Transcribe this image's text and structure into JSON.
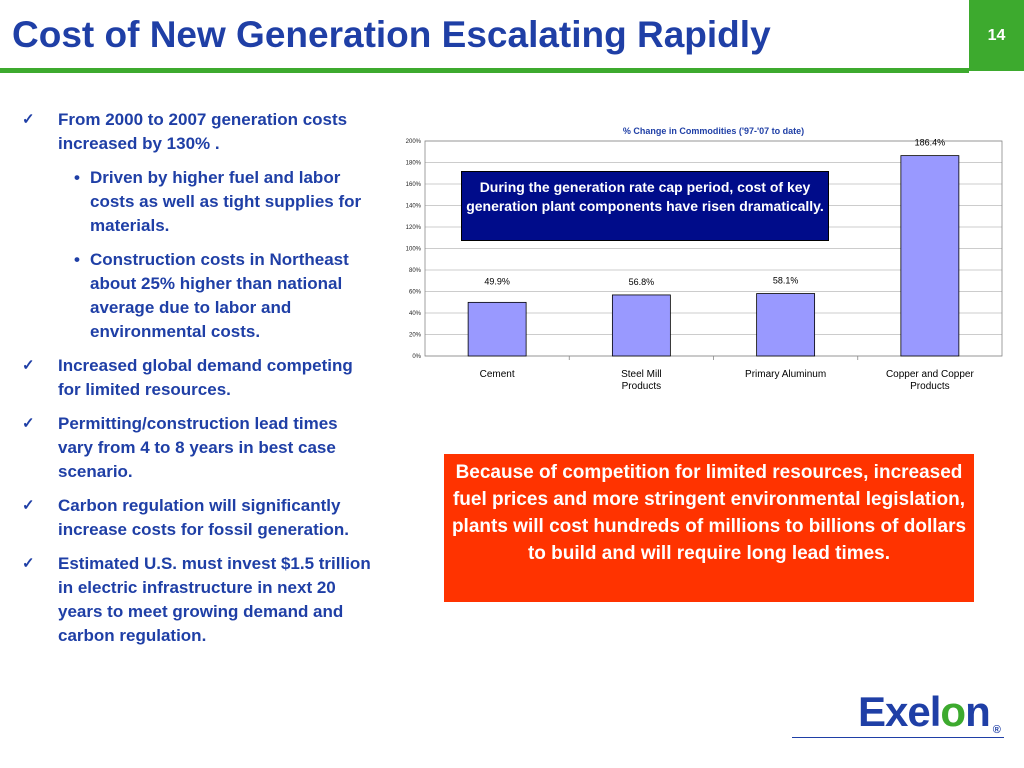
{
  "slide": {
    "title": "Cost of New Generation Escalating Rapidly",
    "number": "14"
  },
  "bullets": [
    {
      "level": 1,
      "text": "From 2000 to 2007 generation costs increased by 130% ."
    },
    {
      "level": 2,
      "text": "Driven by higher fuel and labor costs as well as tight supplies for materials."
    },
    {
      "level": 2,
      "text": "Construction costs in Northeast about 25% higher than national average due to labor and environmental costs."
    },
    {
      "level": 1,
      "text": "Increased global demand competing for limited resources."
    },
    {
      "level": 1,
      "text": "Permitting/construction lead times vary from 4 to 8 years in best case scenario."
    },
    {
      "level": 1,
      "text": "Carbon regulation will significantly increase costs for fossil generation."
    },
    {
      "level": 1,
      "text": "Estimated U.S. must invest $1.5 trillion in electric infrastructure in next 20 years to meet growing demand and carbon regulation."
    }
  ],
  "chart_data": {
    "type": "bar",
    "title": "% Change in Commodities ('97-'07 to date)",
    "categories": [
      "Cement",
      "Steel Mill Products",
      "Primary Aluminum",
      "Copper and Copper Products"
    ],
    "values": [
      49.9,
      56.8,
      58.1,
      186.4
    ],
    "data_labels": [
      "49.9%",
      "56.8%",
      "58.1%",
      "186.4%"
    ],
    "ylim": [
      0,
      200
    ],
    "yticks": [
      "0%",
      "20%",
      "40%",
      "60%",
      "80%",
      "100%",
      "120%",
      "140%",
      "160%",
      "180%",
      "200%"
    ],
    "bar_color": "#9999FF",
    "grid": true,
    "legend": "none"
  },
  "callouts": {
    "chart_note": "During the generation rate cap period, cost of key generation plant components have risen dramatically.",
    "conclusion": "Because of competition for limited resources, increased fuel prices and more stringent environmental legislation, plants will cost hundreds of millions to billions of dollars to build and will require long lead times."
  },
  "logo": {
    "text_a": "Exel",
    "text_b": "o",
    "text_c": "n",
    "registered": "®"
  },
  "colors": {
    "title_blue": "#1F3FA6",
    "accent_green": "#3DAA2E",
    "callout_navy": "#000C8A",
    "callout_red": "#FF3300"
  }
}
